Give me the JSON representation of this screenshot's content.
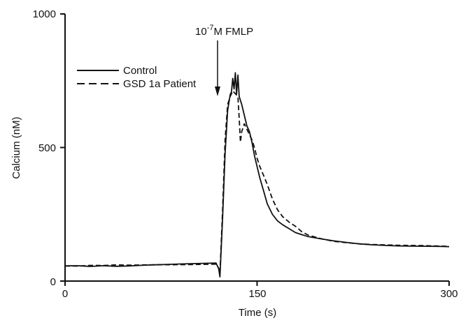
{
  "chart_data": {
    "type": "line",
    "title": "",
    "xlabel": "Time (s)",
    "ylabel": "Calcium (nM)",
    "xlim": [
      0,
      300
    ],
    "ylim": [
      0,
      1000
    ],
    "xticks": [
      0,
      150,
      300
    ],
    "yticks": [
      0,
      500,
      1000
    ],
    "grid": false,
    "legend_position": "top-left",
    "annotation": {
      "text_base": "10",
      "text_exp": "-7",
      "text_rest": "M FMLP",
      "x": 120
    },
    "series": [
      {
        "name": "Control",
        "style": "solid",
        "color": "#111111",
        "x": [
          0,
          10,
          20,
          30,
          40,
          50,
          60,
          70,
          80,
          90,
          100,
          110,
          118,
          120,
          121,
          123,
          125,
          127,
          129,
          130,
          131,
          132,
          133,
          134,
          135,
          136,
          138,
          140,
          142,
          144,
          146,
          148,
          150,
          152,
          155,
          158,
          162,
          166,
          170,
          175,
          180,
          185,
          190,
          200,
          210,
          220,
          230,
          240,
          250,
          260,
          270,
          280,
          290,
          300
        ],
        "y": [
          57,
          58,
          56,
          59,
          57,
          58,
          60,
          61,
          62,
          63,
          64,
          65,
          66,
          45,
          15,
          230,
          480,
          640,
          700,
          710,
          760,
          720,
          780,
          700,
          770,
          690,
          660,
          620,
          580,
          560,
          520,
          470,
          430,
          390,
          340,
          290,
          250,
          225,
          210,
          195,
          180,
          172,
          165,
          157,
          150,
          145,
          140,
          137,
          135,
          133,
          132,
          131,
          130,
          128
        ]
      },
      {
        "name": "GSD 1a Patient",
        "style": "dashed",
        "color": "#111111",
        "x": [
          0,
          10,
          20,
          30,
          40,
          50,
          60,
          70,
          80,
          90,
          100,
          110,
          118,
          120,
          121,
          123,
          125,
          127,
          129,
          131,
          133,
          135,
          136,
          137,
          138,
          140,
          142,
          144,
          146,
          148,
          150,
          152,
          155,
          158,
          162,
          166,
          170,
          175,
          180,
          185,
          190,
          200,
          210,
          220,
          230,
          240,
          250,
          260,
          270,
          280,
          290,
          300
        ],
        "y": [
          57,
          56,
          58,
          57,
          59,
          58,
          59,
          60,
          61,
          62,
          63,
          64,
          65,
          50,
          30,
          260,
          530,
          660,
          690,
          710,
          700,
          690,
          610,
          520,
          560,
          590,
          570,
          550,
          530,
          500,
          460,
          430,
          395,
          360,
          305,
          265,
          240,
          220,
          205,
          185,
          173,
          160,
          150,
          145,
          140,
          137,
          135,
          133,
          132,
          131,
          130,
          129
        ]
      }
    ]
  }
}
